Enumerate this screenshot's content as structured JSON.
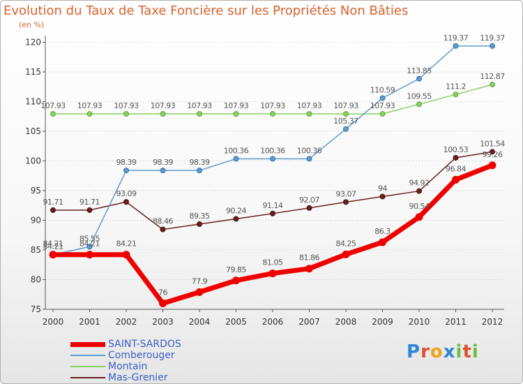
{
  "header": {
    "title": "Evolution du Taux de Taxe Foncière sur les Propriétés Non Bâties",
    "unit": "(en %)"
  },
  "colors": {
    "title": "#d8612a",
    "axis": "#555555",
    "grid": "#bfbfbf",
    "saint_sardos": "#ee0000",
    "comberouger": "#5f9bcf",
    "montain": "#88d060",
    "mas_grenier": "#6a1f1f",
    "legend_label": "#3b5fc6"
  },
  "brand": {
    "text": "Proxiti",
    "letter_colors": [
      "#2e86d6",
      "#e0502e",
      "#f2a21b",
      "#2e86d6",
      "#6cbe45",
      "#e0502e",
      "#6cbe45"
    ]
  },
  "chart_data": {
    "type": "line",
    "title": "Evolution du Taux de Taxe Foncière sur les Propriétés Non Bâties",
    "ylabel": "(en %)",
    "xlabel": "",
    "ylim": [
      75,
      121
    ],
    "yticks": [
      75,
      80,
      85,
      90,
      95,
      100,
      105,
      110,
      115,
      120
    ],
    "grid": "horizontal-dotted",
    "legend": "bottom-left",
    "x": [
      "2000",
      "2001",
      "2002",
      "2003",
      "2004",
      "2005",
      "2006",
      "2007",
      "2008",
      "2009",
      "2010",
      "2011",
      "2012"
    ],
    "series": [
      {
        "key": "saint_sardos",
        "name": "SAINT-SARDOS",
        "values": [
          84.21,
          84.21,
          84.21,
          76,
          77.9,
          79.85,
          81.05,
          81.86,
          84.25,
          86.3,
          90.54,
          96.84,
          99.26
        ],
        "labels": [
          "84.21",
          "84.21",
          "84.21",
          "76",
          "77.9",
          "79.85",
          "81.05",
          "81.86",
          "84.25",
          "86.3",
          "90.54",
          "96.84",
          "99.26"
        ]
      },
      {
        "key": "comberouger",
        "name": "Comberouger",
        "values": [
          84.21,
          85.55,
          98.39,
          98.39,
          98.39,
          100.36,
          100.36,
          100.36,
          105.37,
          110.59,
          113.85,
          119.37,
          119.37
        ],
        "labels": [
          "84.21",
          "85.55",
          "98.39",
          "98.39",
          "98.39",
          "100.36",
          "100.36",
          "100.36",
          "105.37",
          "110.59",
          "113.85",
          "119.37",
          "119.37"
        ]
      },
      {
        "key": "montain",
        "name": "Montain",
        "values": [
          107.93,
          107.93,
          107.93,
          107.93,
          107.93,
          107.93,
          107.93,
          107.93,
          107.93,
          107.93,
          109.55,
          111.2,
          112.87
        ],
        "labels": [
          "107.93",
          "107.93",
          "107.93",
          "107.93",
          "107.93",
          "107.93",
          "107.93",
          "107.93",
          "107.93",
          "107.93",
          "109.55",
          "111.2",
          "112.87"
        ]
      },
      {
        "key": "mas_grenier",
        "name": "Mas-Grenier",
        "values": [
          91.71,
          91.71,
          93.09,
          88.46,
          89.35,
          90.24,
          91.14,
          92.07,
          93.07,
          94,
          94.92,
          100.53,
          101.54
        ],
        "labels": [
          "91.71",
          "91.71",
          "93.09",
          "88.46",
          "89.35",
          "90.24",
          "91.14",
          "92.07",
          "93.07",
          "94",
          "94.92",
          "100.53",
          "101.54"
        ]
      }
    ]
  }
}
